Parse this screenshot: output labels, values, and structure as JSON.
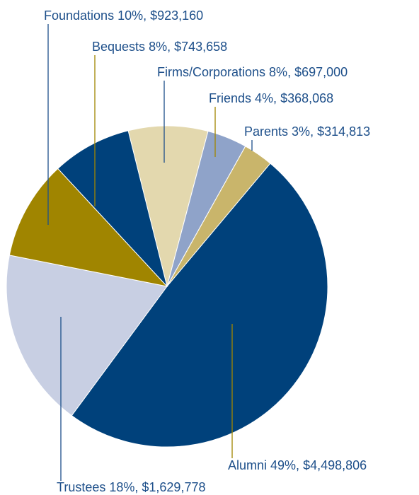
{
  "chart_data": {
    "type": "pie",
    "categories": [
      "Firms/Corporations",
      "Friends",
      "Parents",
      "Alumni",
      "Trustees",
      "Foundations",
      "Bequests"
    ],
    "values": [
      8,
      4,
      3,
      49,
      18,
      10,
      8
    ],
    "value_labels": [
      "8%,",
      "4%,",
      "3%,",
      "49%,",
      "18%,",
      "10%,",
      "8%,"
    ],
    "amount_labels": [
      "$697,000",
      "$368,068",
      "$314,813",
      "$4,498,806",
      "$1,629,778",
      "$923,160",
      "$743,658"
    ],
    "colors": [
      "#e3d8ae",
      "#8fa3c9",
      "#c9b56b",
      "#00417b",
      "#c8cfe3",
      "#a08500",
      "#00417b"
    ]
  }
}
